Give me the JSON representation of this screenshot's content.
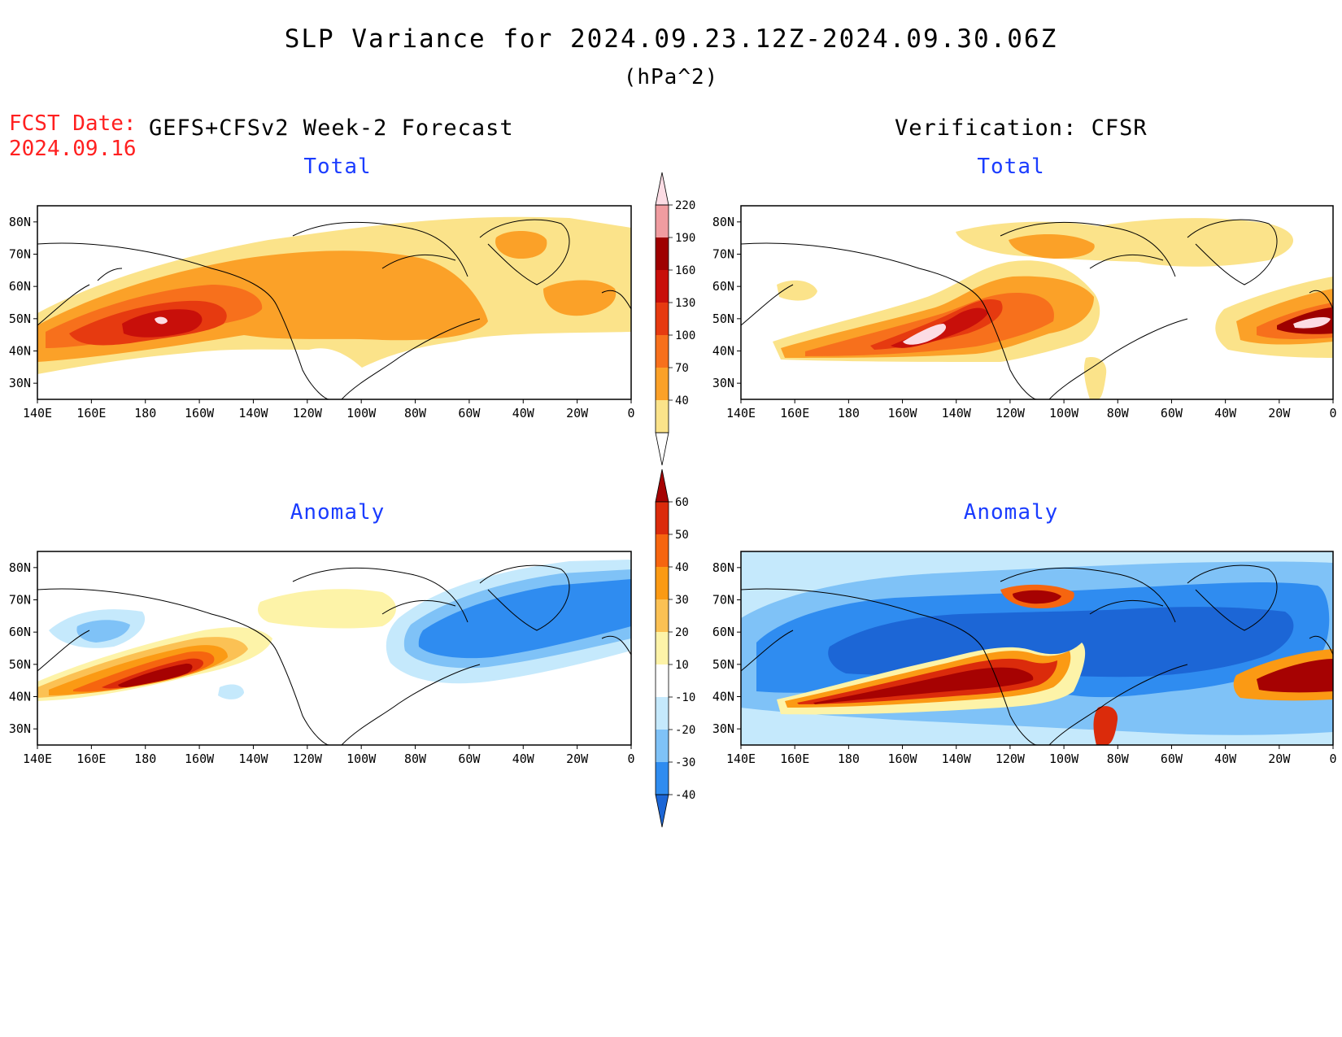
{
  "title": "SLP Variance for 2024.09.23.12Z-2024.09.30.06Z",
  "units": "(hPa^2)",
  "fcst_date_label": "FCST Date:",
  "fcst_date_value": "2024.09.16",
  "forecast_model": "GEFS+CFSv2 Week-2 Forecast",
  "verification": "Verification: CFSR",
  "panel_titles": {
    "forecast_total": "Total",
    "verification_total": "Total",
    "forecast_anomaly": "Anomaly",
    "verification_anomaly": "Anomaly"
  },
  "map_axes": {
    "lon_labels": [
      "140E",
      "160E",
      "180",
      "160W",
      "140W",
      "120W",
      "100W",
      "80W",
      "60W",
      "40W",
      "20W",
      "0"
    ],
    "lat_labels": [
      "80N",
      "70N",
      "60N",
      "50N",
      "40N",
      "30N"
    ],
    "lon_range": [
      140,
      360
    ],
    "lat_range": [
      25,
      85
    ]
  },
  "total_colorbar": {
    "levels": [
      "40",
      "70",
      "100",
      "130",
      "160",
      "190",
      "220"
    ],
    "colors": [
      "#fbe38a",
      "#fba128",
      "#f7701c",
      "#e63a10",
      "#c80f0a",
      "#9e0000",
      "#f09ca0",
      "#fcdce4"
    ]
  },
  "anomaly_colorbar": {
    "levels": [
      "-40",
      "-30",
      "-20",
      "-10",
      "10",
      "20",
      "30",
      "40",
      "50",
      "60"
    ],
    "colors": [
      "#1c66d6",
      "#2f8cf0",
      "#7fc2f7",
      "#c5e9fc",
      "#ffffff",
      "#fdf3a8",
      "#fbc154",
      "#fb9a14",
      "#f6650f",
      "#db2b0b",
      "#a60202"
    ]
  }
}
